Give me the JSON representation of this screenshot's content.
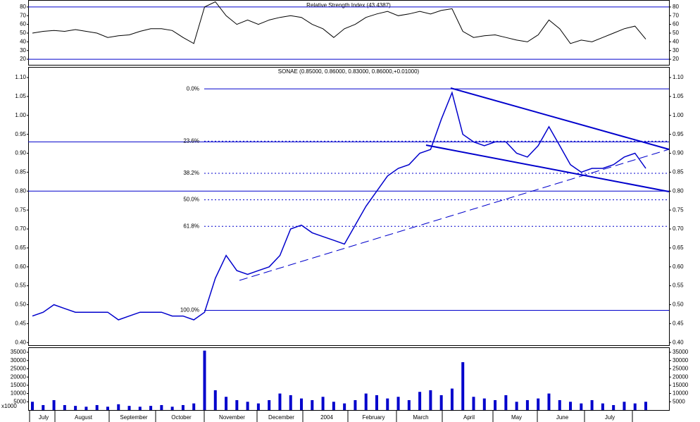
{
  "chart_data": [
    {
      "type": "line",
      "title": "Relative Strength Index (43.4387)",
      "color": "#000000",
      "values": [
        50,
        52,
        53,
        52,
        54,
        52,
        50,
        45,
        47,
        48,
        52,
        55,
        55,
        53,
        45,
        38,
        80,
        86,
        70,
        60,
        65,
        60,
        65,
        68,
        70,
        68,
        60,
        55,
        45,
        55,
        60,
        68,
        72,
        75,
        70,
        72,
        75,
        72,
        76,
        78,
        52,
        45,
        47,
        48,
        45,
        42,
        40,
        48,
        65,
        55,
        38,
        42,
        40,
        45,
        50,
        55,
        58,
        43
      ],
      "ylim": [
        13.6,
        88
      ],
      "yticks": [
        20,
        30,
        40,
        50,
        60,
        70,
        80
      ],
      "hlines": [
        80,
        20
      ]
    },
    {
      "type": "line",
      "title": "SONAE (0.85000, 0.86000, 0.83000, 0.86000,+0.01000)",
      "color": "#0000cc",
      "values": [
        0.47,
        0.48,
        0.5,
        0.49,
        0.48,
        0.48,
        0.48,
        0.48,
        0.46,
        0.47,
        0.48,
        0.48,
        0.48,
        0.47,
        0.47,
        0.46,
        0.48,
        0.57,
        0.63,
        0.59,
        0.58,
        0.59,
        0.6,
        0.63,
        0.7,
        0.71,
        0.69,
        0.68,
        0.67,
        0.66,
        0.71,
        0.76,
        0.8,
        0.84,
        0.86,
        0.87,
        0.9,
        0.91,
        0.99,
        1.06,
        0.95,
        0.93,
        0.92,
        0.93,
        0.93,
        0.9,
        0.89,
        0.92,
        0.97,
        0.92,
        0.87,
        0.85,
        0.86,
        0.86,
        0.87,
        0.89,
        0.9,
        0.86
      ],
      "ylim": [
        0.393,
        1.128
      ],
      "yticks": [
        {
          "value": 0.4,
          "label": "0.40"
        },
        0.45,
        {
          "value": 0.5,
          "label": "0.50"
        },
        0.55,
        {
          "value": 0.6,
          "label": "0.60"
        },
        0.65,
        {
          "value": 0.7,
          "label": "0.70"
        },
        0.75,
        {
          "value": 0.8,
          "label": "0.80"
        },
        0.85,
        {
          "value": 0.9,
          "label": "0.90"
        },
        0.95,
        {
          "value": 1.0,
          "label": "1.00"
        },
        1.05,
        {
          "value": 1.1,
          "label": "1.10"
        }
      ],
      "hlines": [
        0.93,
        0.8
      ],
      "fib_levels": [
        {
          "label": "0.0%",
          "value": 1.07
        },
        {
          "label": "23.6%",
          "value": 0.932
        },
        {
          "label": "38.2%",
          "value": 0.847
        },
        {
          "label": "50.0%",
          "value": 0.777
        },
        {
          "label": "61.8%",
          "value": 0.707
        },
        {
          "label": "100.0%",
          "value": 0.485
        }
      ]
    },
    {
      "type": "bar",
      "color": "#0000cc",
      "unit_label": "x1000",
      "values": [
        5000,
        3000,
        6000,
        3000,
        2500,
        2000,
        3000,
        2000,
        3500,
        2500,
        2000,
        2500,
        3000,
        2000,
        3000,
        4000,
        36000,
        12000,
        8000,
        6000,
        5000,
        4000,
        6000,
        10000,
        9000,
        7000,
        6000,
        8000,
        5000,
        4000,
        6000,
        10000,
        9000,
        7000,
        8000,
        6000,
        11000,
        12000,
        9000,
        13000,
        29000,
        8000,
        7000,
        6000,
        9000,
        5000,
        6000,
        7000,
        10000,
        6000,
        5000,
        4000,
        6000,
        4000,
        3000,
        5000,
        4000,
        5000
      ],
      "ylim": [
        0,
        38000
      ],
      "yticks": [
        5000,
        10000,
        15000,
        20000,
        25000,
        30000,
        35000
      ],
      "months": [
        "July",
        "August",
        "September",
        "October",
        "November",
        "December",
        "2004",
        "February",
        "March",
        "April",
        "May",
        "June",
        "July"
      ]
    }
  ]
}
